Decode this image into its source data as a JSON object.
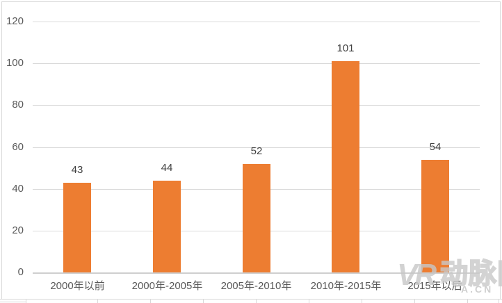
{
  "chart_data": {
    "type": "bar",
    "title": "",
    "categories": [
      "2000年以前",
      "2000年-2005年",
      "2005年-2010年",
      "2010年-2015年",
      "2015年以后"
    ],
    "values": [
      43,
      44,
      52,
      101,
      54
    ],
    "data_labels": [
      "43",
      "44",
      "52",
      "101",
      "54"
    ],
    "ytick_labels": [
      "0",
      "20",
      "40",
      "60",
      "80",
      "100",
      "120"
    ],
    "yticks": [
      0,
      20,
      40,
      60,
      80,
      100,
      120
    ],
    "ylim": [
      0,
      120
    ],
    "xlabel": "",
    "ylabel": "",
    "grid": true,
    "legend": false,
    "bar_color": "#ED7D31",
    "gridline_color": "#D9D9D9",
    "axis_color": "#CFCFCF",
    "data_label_color": "#404040",
    "tick_label_color": "#595959"
  },
  "watermark": {
    "logo": "VR",
    "brand": "动脉网",
    "domain": "A.CN"
  }
}
